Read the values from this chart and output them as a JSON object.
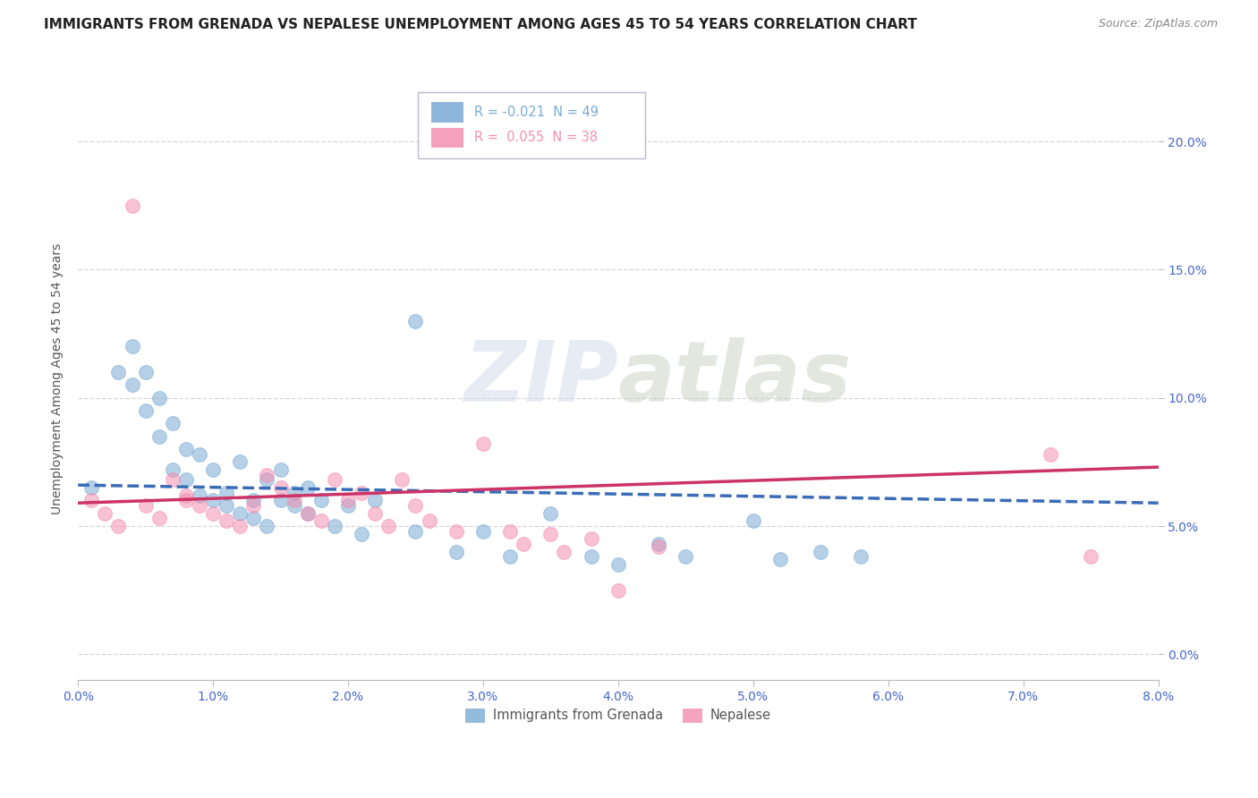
{
  "title": "IMMIGRANTS FROM GRENADA VS NEPALESE UNEMPLOYMENT AMONG AGES 45 TO 54 YEARS CORRELATION CHART",
  "source": "Source: ZipAtlas.com",
  "ylabel": "Unemployment Among Ages 45 to 54 years",
  "legend_stat_labels": [
    "R = -0.021  N = 49",
    "R =  0.055  N = 38"
  ],
  "legend_item_labels": [
    "Immigrants from Grenada",
    "Nepalese"
  ],
  "xlim": [
    0.0,
    0.08
  ],
  "ylim": [
    -0.01,
    0.225
  ],
  "xticks": [
    0.0,
    0.01,
    0.02,
    0.03,
    0.04,
    0.05,
    0.06,
    0.07,
    0.08
  ],
  "yticks_right": [
    0.0,
    0.05,
    0.1,
    0.15,
    0.2
  ],
  "ytick_labels_right": [
    "0.0%",
    "5.0%",
    "10.0%",
    "15.0%",
    "20.0%"
  ],
  "xtick_labels": [
    "0.0%",
    "1.0%",
    "2.0%",
    "3.0%",
    "4.0%",
    "5.0%",
    "6.0%",
    "7.0%",
    "8.0%"
  ],
  "background_color": "#ffffff",
  "grid_color": "#d8d8d8",
  "blue_scatter_x": [
    0.001,
    0.003,
    0.004,
    0.004,
    0.005,
    0.005,
    0.006,
    0.006,
    0.007,
    0.007,
    0.008,
    0.008,
    0.009,
    0.009,
    0.01,
    0.01,
    0.011,
    0.011,
    0.012,
    0.012,
    0.013,
    0.013,
    0.014,
    0.014,
    0.015,
    0.015,
    0.016,
    0.016,
    0.017,
    0.025,
    0.017,
    0.018,
    0.019,
    0.02,
    0.021,
    0.022,
    0.025,
    0.028,
    0.03,
    0.032,
    0.035,
    0.038,
    0.04,
    0.043,
    0.045,
    0.05,
    0.052,
    0.055,
    0.058
  ],
  "blue_scatter_y": [
    0.065,
    0.11,
    0.12,
    0.105,
    0.095,
    0.11,
    0.085,
    0.1,
    0.072,
    0.09,
    0.068,
    0.08,
    0.062,
    0.078,
    0.06,
    0.072,
    0.058,
    0.063,
    0.055,
    0.075,
    0.053,
    0.06,
    0.05,
    0.068,
    0.06,
    0.072,
    0.058,
    0.063,
    0.065,
    0.13,
    0.055,
    0.06,
    0.05,
    0.058,
    0.047,
    0.06,
    0.048,
    0.04,
    0.048,
    0.038,
    0.055,
    0.038,
    0.035,
    0.043,
    0.038,
    0.052,
    0.037,
    0.04,
    0.038
  ],
  "pink_scatter_x": [
    0.001,
    0.002,
    0.003,
    0.004,
    0.005,
    0.006,
    0.007,
    0.008,
    0.008,
    0.009,
    0.01,
    0.011,
    0.012,
    0.013,
    0.014,
    0.015,
    0.016,
    0.017,
    0.018,
    0.019,
    0.02,
    0.021,
    0.022,
    0.023,
    0.024,
    0.025,
    0.026,
    0.028,
    0.03,
    0.032,
    0.033,
    0.035,
    0.036,
    0.038,
    0.04,
    0.043,
    0.072,
    0.075
  ],
  "pink_scatter_y": [
    0.06,
    0.055,
    0.05,
    0.175,
    0.058,
    0.053,
    0.068,
    0.062,
    0.06,
    0.058,
    0.055,
    0.052,
    0.05,
    0.058,
    0.07,
    0.065,
    0.06,
    0.055,
    0.052,
    0.068,
    0.06,
    0.063,
    0.055,
    0.05,
    0.068,
    0.058,
    0.052,
    0.048,
    0.082,
    0.048,
    0.043,
    0.047,
    0.04,
    0.045,
    0.025,
    0.042,
    0.078,
    0.038
  ],
  "blue_line_x": [
    0.0,
    0.08
  ],
  "blue_line_y": [
    0.066,
    0.059
  ],
  "pink_line_x": [
    0.0,
    0.08
  ],
  "pink_line_y": [
    0.059,
    0.073
  ],
  "blue_color": "#7aaad4",
  "pink_color": "#f48fb1",
  "blue_line_color": "#3b6cb7",
  "pink_line_color": "#cc3366",
  "dot_size": 130,
  "dot_alpha": 0.55,
  "title_fontsize": 11,
  "axis_label_fontsize": 10,
  "tick_fontsize": 10,
  "tick_color": "#4466cc",
  "source_color": "#888888"
}
